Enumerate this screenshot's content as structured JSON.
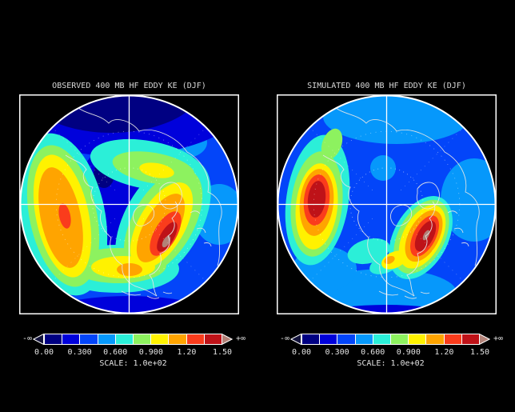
{
  "figure": {
    "background": "#000000",
    "text_color": "#E2E2E2"
  },
  "panels": [
    {
      "id": "observed",
      "title": "OBSERVED 400 MB HF EDDY KE (DJF)"
    },
    {
      "id": "simulated",
      "title": "SIMULATED 400 MB HF EDDY KE (DJF)"
    }
  ],
  "colorbar": {
    "palette": [
      "#000082",
      "#0001DB",
      "#0345F9",
      "#0698FB",
      "#2BEFD8",
      "#8DF25F",
      "#FFF200",
      "#FFA400",
      "#FA3C1C",
      "#BE1218"
    ],
    "under_color": "#14143C",
    "over_color": "#B28177",
    "tick_labels": [
      "0.00",
      "0.300",
      "0.600",
      "0.900",
      "1.20",
      "1.50"
    ],
    "scale_label": "SCALE: 1.0e+02",
    "neg_inf": "-∞",
    "pos_inf": "+∞"
  },
  "chart_data": [
    {
      "type": "heatmap",
      "subtype": "filled-contour-map",
      "panel": "left",
      "title": "OBSERVED 400 MB HF EDDY KE (DJF)",
      "projection": "north-polar-stereographic",
      "quantity": "high-frequency eddy kinetic energy",
      "pressure_level_mb": 400,
      "season": "DJF",
      "scale_factor": "1.0e+02",
      "contour_interval": 0.15,
      "contour_levels": [
        0.0,
        0.15,
        0.3,
        0.45,
        0.6,
        0.75,
        0.9,
        1.05,
        1.2,
        1.35,
        1.5
      ],
      "labeled_levels": [
        "0.00",
        "0.300",
        "0.600",
        "0.900",
        "1.20",
        "1.50"
      ],
      "features": [
        {
          "name": "Pacific storm-track maximum",
          "location": "central North Pacific",
          "approx_max": 1.35
        },
        {
          "name": "Atlantic storm-track maximum",
          "location": "western North Atlantic",
          "approx_max": 1.55
        },
        {
          "name": "polar minimum",
          "location": "Arctic near pole",
          "approx_value": 0.15
        },
        {
          "name": "connecting band",
          "location": "subtropical North America",
          "approx_value": 0.9
        }
      ]
    },
    {
      "type": "heatmap",
      "subtype": "filled-contour-map",
      "panel": "right",
      "title": "SIMULATED 400 MB HF EDDY KE (DJF)",
      "projection": "north-polar-stereographic",
      "quantity": "high-frequency eddy kinetic energy",
      "pressure_level_mb": 400,
      "season": "DJF",
      "scale_factor": "1.0e+02",
      "contour_interval": 0.15,
      "contour_levels": [
        0.0,
        0.15,
        0.3,
        0.45,
        0.6,
        0.75,
        0.9,
        1.05,
        1.2,
        1.35,
        1.5
      ],
      "labeled_levels": [
        "0.00",
        "0.300",
        "0.600",
        "0.900",
        "1.20",
        "1.50"
      ],
      "features": [
        {
          "name": "Pacific storm-track maximum",
          "location": "central North Pacific",
          "approx_max": 1.5
        },
        {
          "name": "Atlantic storm-track maximum",
          "location": "western North Atlantic",
          "approx_max": 1.55
        },
        {
          "name": "polar minimum",
          "location": "Arctic near pole",
          "approx_value": 0.45
        }
      ]
    }
  ]
}
